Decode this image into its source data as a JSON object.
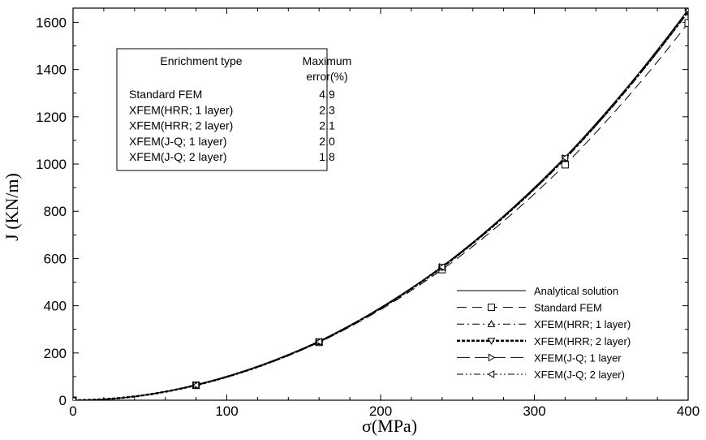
{
  "chart_data": {
    "type": "line",
    "xlabel": "σ(MPa)",
    "ylabel": "J (KN/m)",
    "xlim": [
      0,
      400
    ],
    "ylim": [
      0,
      1660
    ],
    "xticks": [
      0,
      100,
      200,
      300,
      400
    ],
    "yticks": [
      0,
      200,
      400,
      600,
      800,
      1000,
      1200,
      1400,
      1600
    ],
    "grid": false,
    "legend_position": "bottom-right",
    "series": [
      {
        "name": "Analytical solution",
        "marker": "none",
        "dash": "",
        "width": 1,
        "x": [
          0,
          80,
          160,
          240,
          320,
          400
        ],
        "y": [
          0,
          66,
          250,
          567,
          1030,
          1655
        ]
      },
      {
        "name": "Standard FEM",
        "marker": "square",
        "dash": "12,7",
        "width": 1,
        "x": [
          0,
          80,
          160,
          240,
          320,
          400
        ],
        "y": [
          0,
          63,
          245,
          553,
          997,
          1597
        ]
      },
      {
        "name": "XFEM(HRR; 1 layer)",
        "marker": "triangle-up",
        "dash": "9,4,2,4",
        "width": 1,
        "x": [
          0,
          80,
          160,
          240,
          320,
          400
        ],
        "y": [
          0,
          64,
          247,
          562,
          1021,
          1643
        ]
      },
      {
        "name": "XFEM(HRR; 2 layer)",
        "marker": "triangle-down",
        "dash": "4,2",
        "width": 2.5,
        "x": [
          0,
          80,
          160,
          240,
          320,
          400
        ],
        "y": [
          0,
          64,
          248,
          563,
          1024,
          1647
        ]
      },
      {
        "name": "XFEM(J-Q; 1 layer",
        "marker": "triangle-right",
        "dash": "16,6",
        "width": 1,
        "x": [
          0,
          80,
          160,
          240,
          320,
          400
        ],
        "y": [
          0,
          64,
          248,
          564,
          1025,
          1649
        ]
      },
      {
        "name": "XFEM(J-Q; 2 layer)",
        "marker": "triangle-left",
        "dash": "8,3,2,3,2,3",
        "width": 1,
        "x": [
          0,
          80,
          160,
          240,
          320,
          400
        ],
        "y": [
          0,
          64,
          248,
          564,
          1026,
          1651
        ]
      }
    ],
    "error_table": {
      "headers": [
        "Enrichment type",
        "Maximum",
        "error(%)"
      ],
      "rows": [
        {
          "type": "Standard FEM",
          "error": "4.9"
        },
        {
          "type": "XFEM(HRR; 1 layer)",
          "error": "2.3"
        },
        {
          "type": "XFEM(HRR; 2 layer)",
          "error": "2.1"
        },
        {
          "type": "XFEM(J-Q; 1 layer)",
          "error": "2.0"
        },
        {
          "type": "XFEM(J-Q; 2 layer)",
          "error": "1.8"
        }
      ]
    }
  }
}
